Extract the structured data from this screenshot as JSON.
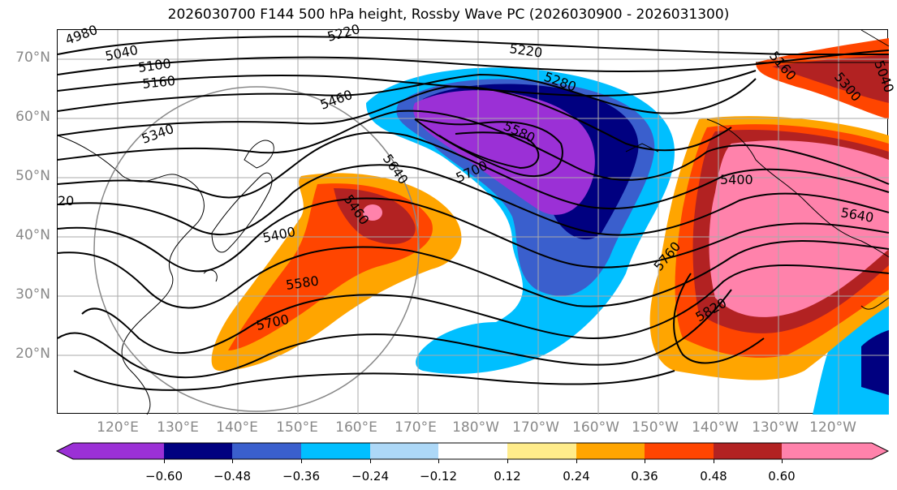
{
  "title": "2026030700 F144 500 hPa height, Rossby Wave PC (2026030900 - 2026031300)",
  "lat_labels": [
    "70°N",
    "60°N",
    "50°N",
    "40°N",
    "30°N",
    "20°N"
  ],
  "lon_labels": [
    "120°E",
    "130°E",
    "140°E",
    "150°E",
    "160°E",
    "170°E",
    "180°W",
    "170°W",
    "160°W",
    "150°W",
    "140°W",
    "130°W",
    "120°W"
  ],
  "contour_labels": [
    "4980",
    "5040",
    "5100",
    "5160",
    "5220",
    "5220",
    "5280",
    "5340",
    "5460",
    "5580",
    "5640",
    "5700",
    "5460",
    "5400",
    "5580",
    "5700",
    "5400",
    "5640",
    "5760",
    "5820",
    "5160",
    "5300",
    "5040",
    "20"
  ],
  "colorbar": {
    "ticks": [
      "−0.60",
      "−0.48",
      "−0.36",
      "−0.24",
      "−0.12",
      "0.12",
      "0.24",
      "0.36",
      "0.48",
      "0.60"
    ],
    "colors": {
      "lt_-0.60": "#9b30d6",
      "-0.60_-0.48": "#000080",
      "-0.48_-0.36": "#3a5fcd",
      "-0.36_-0.24": "#00bfff",
      "-0.24_-0.12": "#add8f7",
      "-0.12_0.12": "#ffffff",
      "0.12_0.24": "#ffec8b",
      "0.24_0.36": "#ffa500",
      "0.36_0.48": "#ff4500",
      "0.48_0.60": "#b22222",
      "gt_0.60": "#ff82ab"
    }
  }
}
